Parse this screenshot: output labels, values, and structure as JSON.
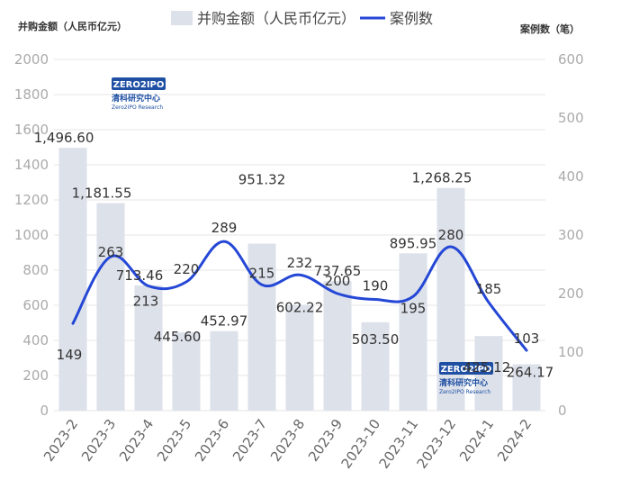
{
  "chart_data": {
    "type": "bar",
    "title": "",
    "categories": [
      "2023-2",
      "2023-3",
      "2023-4",
      "2023-5",
      "2023-6",
      "2023-7",
      "2023-8",
      "2023-9",
      "2023-10",
      "2023-11",
      "2023-12",
      "2024-1",
      "2024-2"
    ],
    "series": [
      {
        "name": "并购金额（人民币亿元）",
        "kind": "bar",
        "axis": "left",
        "color": "#dde1ea",
        "values": [
          1496.6,
          1181.55,
          713.46,
          445.6,
          452.97,
          951.32,
          602.22,
          737.65,
          503.5,
          895.95,
          1268.25,
          425.12,
          264.17
        ],
        "labels": [
          "1,496.60",
          "1,181.55",
          "713.46",
          "445.60",
          "452.97",
          "951.32",
          "602.22",
          "737.65",
          "503.50",
          "895.95",
          "1,268.25",
          "425.12",
          "264.17"
        ]
      },
      {
        "name": "案例数",
        "kind": "line",
        "axis": "right",
        "color": "#2447d6",
        "values": [
          149,
          263,
          213,
          220,
          289,
          215,
          232,
          200,
          190,
          195,
          280,
          185,
          103
        ],
        "labels": [
          "149",
          "263",
          "213",
          "220",
          "289",
          "215",
          "232",
          "200",
          "190",
          "195",
          "280",
          "185",
          "103"
        ]
      }
    ],
    "left_axis": {
      "label": "并购金额（人民币亿元）",
      "ylim": [
        0,
        2000
      ],
      "ticks": [
        "0",
        "200",
        "400",
        "600",
        "800",
        "1000",
        "1200",
        "1400",
        "1600",
        "1800",
        "2000"
      ]
    },
    "right_axis": {
      "label": "案例数（笔）",
      "ylim": [
        0,
        600
      ],
      "ticks": [
        "0",
        "100",
        "200",
        "300",
        "400",
        "500",
        "600"
      ]
    },
    "grid": true,
    "legend_position": "top-center",
    "watermark": {
      "brand": "ZERO2IPO",
      "name_cn": "清科研究中心",
      "name_en": "Zero2IPO Research"
    }
  }
}
